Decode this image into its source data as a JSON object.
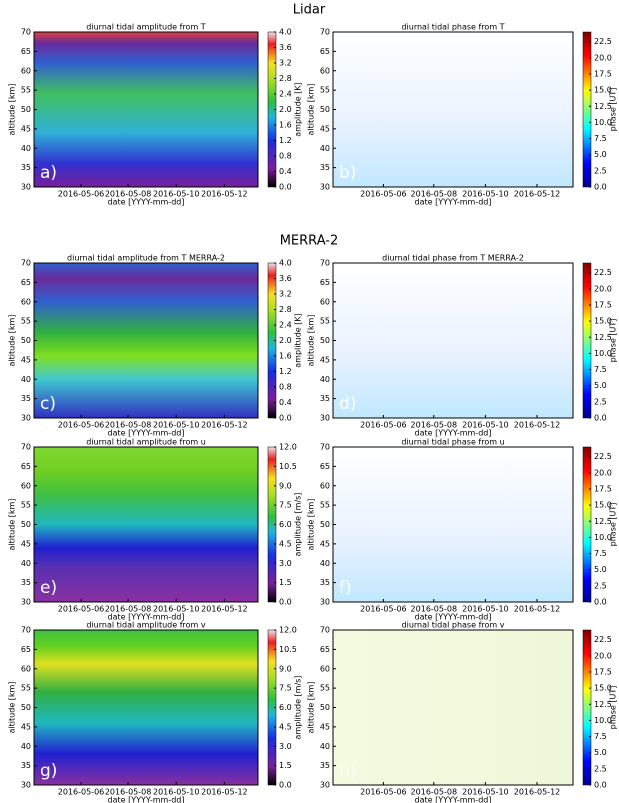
{
  "sections": [
    "Lidar",
    "MERRA-2"
  ],
  "xticks": [
    "2016-05-06",
    "2016-05-08",
    "2016-05-10",
    "2016-05-12"
  ],
  "xlabel": "date [YYYY-mm-dd]",
  "ylabel": "altitude [km]",
  "ylim": [
    30,
    70
  ],
  "yticks": [
    30,
    35,
    40,
    45,
    50,
    55,
    60,
    65,
    70
  ],
  "amp_T_cbar": {
    "label": "amplitude [K]",
    "clim": [
      0,
      4
    ],
    "ticks": [
      {
        "value": 0,
        "label": "0.0"
      },
      {
        "value": 0.4,
        "label": "0.4"
      },
      {
        "value": 0.8,
        "label": "0.8"
      },
      {
        "value": 1.2,
        "label": "1.2"
      },
      {
        "value": 1.6,
        "label": "1.6"
      },
      {
        "value": 2,
        "label": "2.0"
      },
      {
        "value": 2.4,
        "label": "2.4"
      },
      {
        "value": 2.8,
        "label": "2.8"
      },
      {
        "value": 3.2,
        "label": "3.2"
      },
      {
        "value": 3.6,
        "label": "3.6"
      },
      {
        "value": 4,
        "label": "4.0"
      }
    ]
  },
  "amp_w_cbar": {
    "label": "amplitude [m/s]",
    "clim": [
      0,
      12
    ],
    "ticks": [
      {
        "value": 0,
        "label": "0.0"
      },
      {
        "value": 1.5,
        "label": "1.5"
      },
      {
        "value": 3,
        "label": "3.0"
      },
      {
        "value": 4.5,
        "label": "4.5"
      },
      {
        "value": 6,
        "label": "6.0"
      },
      {
        "value": 7.5,
        "label": "7.5"
      },
      {
        "value": 9,
        "label": "9.0"
      },
      {
        "value": 10.5,
        "label": "10.5"
      },
      {
        "value": 12,
        "label": "12.0"
      }
    ]
  },
  "phase_cbar": {
    "label": "phase [UT]",
    "clim": [
      0,
      24
    ],
    "ticks": [
      {
        "value": 0,
        "label": "0.0"
      },
      {
        "value": 2.5,
        "label": "2.5"
      },
      {
        "value": 5,
        "label": "5.0"
      },
      {
        "value": 7.5,
        "label": "7.5"
      },
      {
        "value": 10,
        "label": "10.0"
      },
      {
        "value": 12.5,
        "label": "12.5"
      },
      {
        "value": 15,
        "label": "15.0"
      },
      {
        "value": 17.5,
        "label": "17.5"
      },
      {
        "value": 20,
        "label": "20.0"
      },
      {
        "value": 22.5,
        "label": "22.5"
      }
    ]
  },
  "panels": [
    {
      "letter": "a)",
      "title": "diurnal tidal amplitude from T",
      "cbar": "amp_T_cbar"
    },
    {
      "letter": "b)",
      "title": "diurnal tidal phase from T",
      "cbar": "phase_cbar"
    },
    {
      "letter": "c)",
      "title": "diurnal tidal amplitude from T MERRA-2",
      "cbar": "amp_T_cbar"
    },
    {
      "letter": "d)",
      "title": "diurnal tidal phase from T MERRA-2",
      "cbar": "phase_cbar"
    },
    {
      "letter": "e)",
      "title": "diurnal tidal amplitude from u",
      "cbar": "amp_w_cbar"
    },
    {
      "letter": "f)",
      "title": "diurnal tidal phase from u",
      "cbar": "phase_cbar"
    },
    {
      "letter": "g)",
      "title": "diurnal tidal amplitude from v",
      "cbar": "amp_w_cbar"
    },
    {
      "letter": "h)",
      "title": "diurnal tidal phase from v",
      "cbar": "phase_cbar"
    }
  ]
}
